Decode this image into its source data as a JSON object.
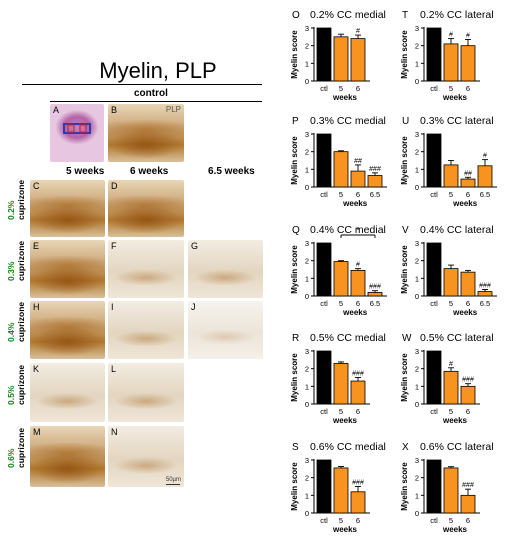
{
  "figure": {
    "title": "Myelin, PLP",
    "control_label": "control",
    "columns": [
      "5 weeks",
      "6 weeks",
      "6.5 weeks"
    ],
    "rows": [
      {
        "conc": "0.2%",
        "agent": "cuprizone"
      },
      {
        "conc": "0.3%",
        "agent": "cuprizone"
      },
      {
        "conc": "0.4%",
        "agent": "cuprizone"
      },
      {
        "conc": "0.5%",
        "agent": "cuprizone"
      },
      {
        "conc": "0.6%",
        "agent": "cuprizone"
      }
    ],
    "panel_letters": [
      "A",
      "B",
      "C",
      "D",
      "E",
      "F",
      "G",
      "H",
      "I",
      "J",
      "K",
      "L",
      "M",
      "N"
    ],
    "plp_label": "PLP",
    "scalebar_label": "50µm",
    "colors": {
      "control": "#000000",
      "treated": "#f7931e",
      "concentration_text": "#1a7f1a"
    }
  },
  "chart_data": [
    {
      "type": "bar",
      "panel": "O",
      "title": "0.2% CC medial",
      "ylabel": "Myelin score",
      "xlabel": "weeks",
      "categories": [
        "ctl",
        "5",
        "6"
      ],
      "values": [
        3.0,
        2.5,
        2.4
      ],
      "errors": [
        0,
        0.15,
        0.2
      ],
      "annotations": [
        "",
        "",
        "#"
      ],
      "ylim": [
        0,
        3
      ],
      "yticks": [
        0,
        1,
        2,
        3
      ]
    },
    {
      "type": "bar",
      "panel": "T",
      "title": "0.2% CC lateral",
      "ylabel": "Myelin score",
      "xlabel": "weeks",
      "categories": [
        "ctl",
        "5",
        "6"
      ],
      "values": [
        3.0,
        2.1,
        2.0
      ],
      "errors": [
        0,
        0.3,
        0.35
      ],
      "annotations": [
        "",
        "#",
        "#"
      ],
      "ylim": [
        0,
        3
      ],
      "yticks": [
        0,
        1,
        2,
        3
      ]
    },
    {
      "type": "bar",
      "panel": "P",
      "title": "0.3% CC medial",
      "ylabel": "Myelin score",
      "xlabel": "weeks",
      "categories": [
        "ctl",
        "5",
        "6",
        "6.5"
      ],
      "values": [
        3.0,
        2.0,
        0.9,
        0.65
      ],
      "errors": [
        0,
        0.05,
        0.35,
        0.15
      ],
      "annotations": [
        "",
        "",
        "##",
        "###"
      ],
      "ylim": [
        0,
        3
      ],
      "yticks": [
        0,
        1,
        2,
        3
      ]
    },
    {
      "type": "bar",
      "panel": "U",
      "title": "0.3% CC lateral",
      "ylabel": "Myelin score",
      "xlabel": "weeks",
      "categories": [
        "ctl",
        "5",
        "6",
        "6.5"
      ],
      "values": [
        3.0,
        1.25,
        0.45,
        1.2
      ],
      "errors": [
        0,
        0.25,
        0.1,
        0.35
      ],
      "annotations": [
        "",
        "",
        "##",
        "#"
      ],
      "ylim": [
        0,
        3
      ],
      "yticks": [
        0,
        1,
        2,
        3
      ]
    },
    {
      "type": "bar",
      "panel": "Q",
      "title": "0.4% CC medial",
      "ylabel": "Myelin score",
      "xlabel": "weeks",
      "categories": [
        "ctl",
        "5",
        "6",
        "6.5"
      ],
      "values": [
        3.0,
        1.95,
        1.45,
        0.2
      ],
      "errors": [
        0,
        0.05,
        0.1,
        0.1
      ],
      "annotations": [
        "",
        "",
        "#",
        "###"
      ],
      "bracket": {
        "from": "5",
        "to": "6.5",
        "label": "*"
      },
      "ylim": [
        0,
        3
      ],
      "yticks": [
        0,
        1,
        2,
        3
      ]
    },
    {
      "type": "bar",
      "panel": "V",
      "title": "0.4% CC lateral",
      "ylabel": "Myelin score",
      "xlabel": "weeks",
      "categories": [
        "ctl",
        "5",
        "6",
        "6.5"
      ],
      "values": [
        3.0,
        1.55,
        1.35,
        0.25
      ],
      "errors": [
        0,
        0.2,
        0.1,
        0.12
      ],
      "annotations": [
        "",
        "",
        "",
        "###"
      ],
      "ylim": [
        0,
        3
      ],
      "yticks": [
        0,
        1,
        2,
        3
      ]
    },
    {
      "type": "bar",
      "panel": "R",
      "title": "0.5% CC medial",
      "ylabel": "Myelin score",
      "xlabel": "weeks",
      "categories": [
        "ctl",
        "5",
        "6"
      ],
      "values": [
        3.0,
        2.3,
        1.3
      ],
      "errors": [
        0,
        0.08,
        0.2
      ],
      "annotations": [
        "",
        "",
        "###"
      ],
      "ylim": [
        0,
        3
      ],
      "yticks": [
        0,
        1,
        2,
        3
      ]
    },
    {
      "type": "bar",
      "panel": "W",
      "title": "0.5% CC lateral",
      "ylabel": "Myelin score",
      "xlabel": "weeks",
      "categories": [
        "ctl",
        "5",
        "6"
      ],
      "values": [
        3.0,
        1.85,
        1.0
      ],
      "errors": [
        0,
        0.2,
        0.15
      ],
      "annotations": [
        "",
        "#",
        "###"
      ],
      "ylim": [
        0,
        3
      ],
      "yticks": [
        0,
        1,
        2,
        3
      ]
    },
    {
      "type": "bar",
      "panel": "S",
      "title": "0.6% CC medial",
      "ylabel": "Myelin score",
      "xlabel": "weeks",
      "categories": [
        "ctl",
        "5",
        "6"
      ],
      "values": [
        3.0,
        2.55,
        1.2
      ],
      "errors": [
        0,
        0.08,
        0.3
      ],
      "annotations": [
        "",
        "",
        "###"
      ],
      "ylim": [
        0,
        3
      ],
      "yticks": [
        0,
        1,
        2,
        3
      ]
    },
    {
      "type": "bar",
      "panel": "X",
      "title": "0.6% CC lateral",
      "ylabel": "Myelin score",
      "xlabel": "weeks",
      "categories": [
        "ctl",
        "5",
        "6"
      ],
      "values": [
        3.0,
        2.55,
        1.0
      ],
      "errors": [
        0,
        0.07,
        0.35
      ],
      "annotations": [
        "",
        "",
        "###"
      ],
      "ylim": [
        0,
        3
      ],
      "yticks": [
        0,
        1,
        2,
        3
      ]
    }
  ]
}
